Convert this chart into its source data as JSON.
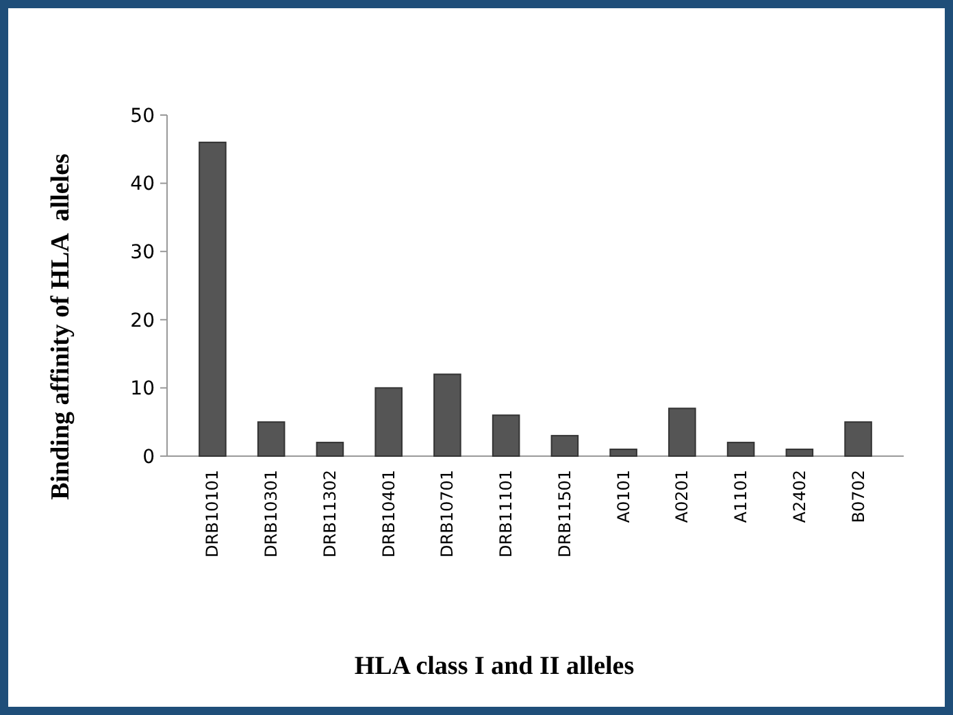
{
  "chart_data": {
    "type": "bar",
    "xlabel": "HLA class I and II alleles",
    "ylabel": "Binding affinity of HLA  alleles",
    "categories": [
      "DRB10101",
      "DRB10301",
      "DRB11302",
      "DRB10401",
      "DRB10701",
      "DRB11101",
      "DRB11501",
      "A0101",
      "A0201",
      "A1101",
      "A2402",
      "B0702"
    ],
    "values": [
      46,
      5,
      2,
      10,
      12,
      6,
      3,
      1,
      7,
      2,
      1,
      5
    ],
    "color": "#555555",
    "ylim": [
      0,
      50
    ],
    "yticks": [
      0,
      10,
      20,
      30,
      40,
      50
    ]
  }
}
